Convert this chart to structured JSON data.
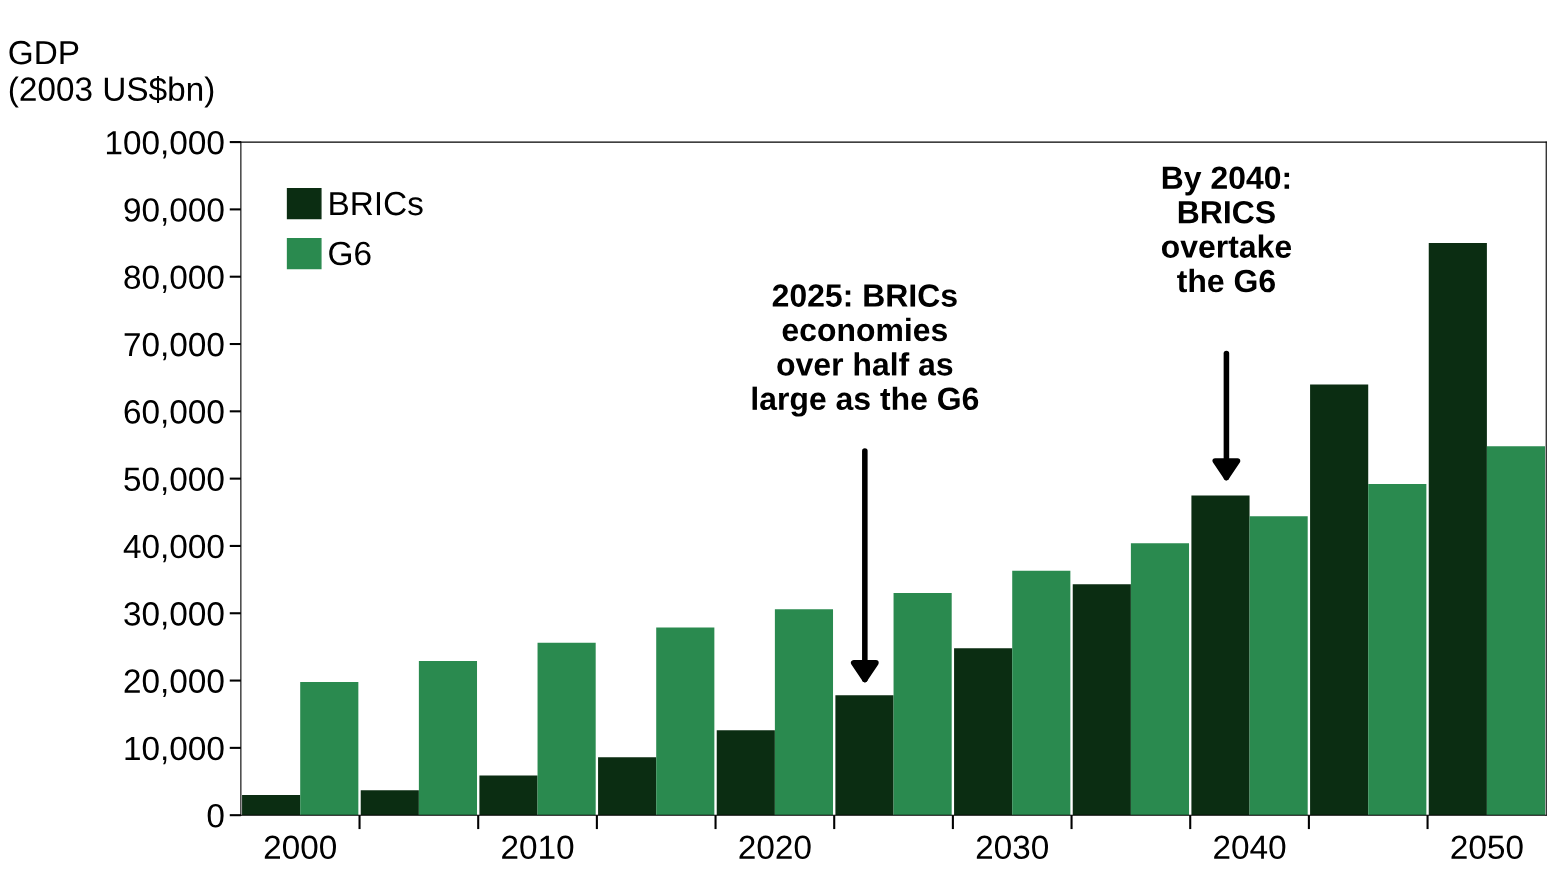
{
  "chart_data": {
    "type": "bar",
    "ylabel": "GDP\n(2003 US$bn)",
    "categories": [
      "2000",
      null,
      "2010",
      null,
      "2020",
      null,
      "2030",
      null,
      "2040",
      null,
      "2050"
    ],
    "series": [
      {
        "name": "BRICs",
        "color": "#0b2d12",
        "values": [
          3000,
          3700,
          5900,
          8600,
          12600,
          17800,
          24800,
          34300,
          47500,
          64000,
          85000
        ]
      },
      {
        "name": "G6",
        "color": "#2a8a4f",
        "values": [
          19800,
          22900,
          25600,
          27900,
          30600,
          33000,
          36300,
          40400,
          44400,
          49200,
          54800
        ]
      }
    ],
    "ylim": [
      0,
      100000
    ],
    "yticks": [
      0,
      {
        "value": 10000,
        "label": "10,000"
      },
      {
        "value": 20000,
        "label": "20,000"
      },
      {
        "value": 30000,
        "label": "30,000"
      },
      {
        "value": 40000,
        "label": "40,000"
      },
      {
        "value": 50000,
        "label": "50,000"
      },
      {
        "value": 60000,
        "label": "60,000"
      },
      {
        "value": 70000,
        "label": "70,000"
      },
      {
        "value": 80000,
        "label": "80,000"
      },
      {
        "value": 90000,
        "label": "90,000"
      },
      {
        "value": 100000,
        "label": "100,000"
      }
    ],
    "annotations": [
      "2025: BRICs\neconomies\nover half as\nlarge as the G6",
      "By 2040:\nBRICS\novertake\nthe G6"
    ],
    "legend": "top left",
    "grid": false
  }
}
